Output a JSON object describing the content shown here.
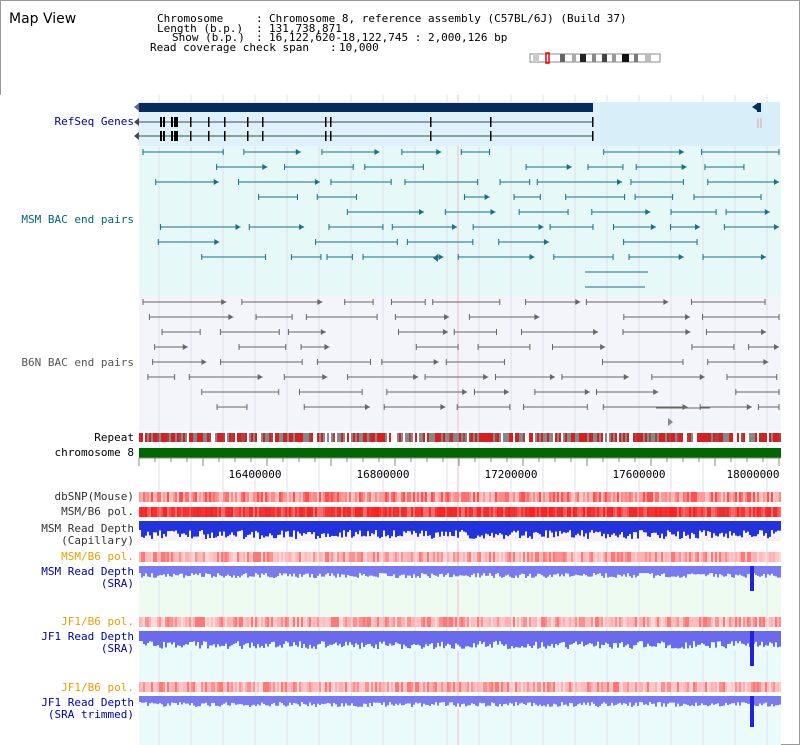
{
  "page": {
    "title": "Map View"
  },
  "header": {
    "rows": [
      {
        "key": "Chromosome",
        "value": "Chromosome 8, reference assembly (C57BL/6J) (Build 37)"
      },
      {
        "key": "Length (b.p.)",
        "value": "131,738,871"
      },
      {
        "key": "Show (b.p.)",
        "value": "16,122,620-18,122,745 : 2,000,126 bp"
      },
      {
        "key": "Read coverage check span",
        "value": "10,000"
      }
    ]
  },
  "axis": {
    "ticks": [
      "16400000",
      "16800000",
      "17200000",
      "17600000",
      "18000000"
    ]
  },
  "tracks": {
    "refseq": {
      "label": "RefSeq Genes",
      "color": "#0000aa"
    },
    "msm_bac": {
      "label": "MSM BAC end pairs",
      "color": "#006677"
    },
    "b6n_bac": {
      "label": "B6N BAC end pairs",
      "color": "#555555"
    },
    "repeat": {
      "label": "Repeat",
      "color": "#000000"
    },
    "chromosome": {
      "label": "chromosome 8",
      "color": "#000000"
    },
    "dbsnp": {
      "label": "dbSNP(Mouse)",
      "color": "#333333"
    },
    "msm_b6_pol": {
      "label": "MSM/B6 pol.",
      "color": "#333333"
    },
    "msm_depth_cap": {
      "label1": "MSM Read Depth",
      "label2": "(Capillary)",
      "color": "#333333"
    },
    "msm_b6_pol2": {
      "label": "MSM/B6 pol.",
      "color": "#e8a000"
    },
    "msm_depth_sra": {
      "label1": "MSM Read Depth",
      "label2": "(SRA)",
      "color": "#0000aa"
    },
    "jf1_b6_pol": {
      "label": "JF1/B6 pol.",
      "color": "#e8a000"
    },
    "jf1_depth_sra": {
      "label1": "JF1 Read Depth",
      "label2": "(SRA)",
      "color": "#0000aa"
    },
    "jf1_b6_pol2": {
      "label": "JF1/B6 pol.",
      "color": "#e8a000"
    },
    "jf1_depth_trim": {
      "label1": "JF1 Read Depth",
      "label2": "(SRA trimmed)",
      "color": "#0000aa"
    }
  }
}
